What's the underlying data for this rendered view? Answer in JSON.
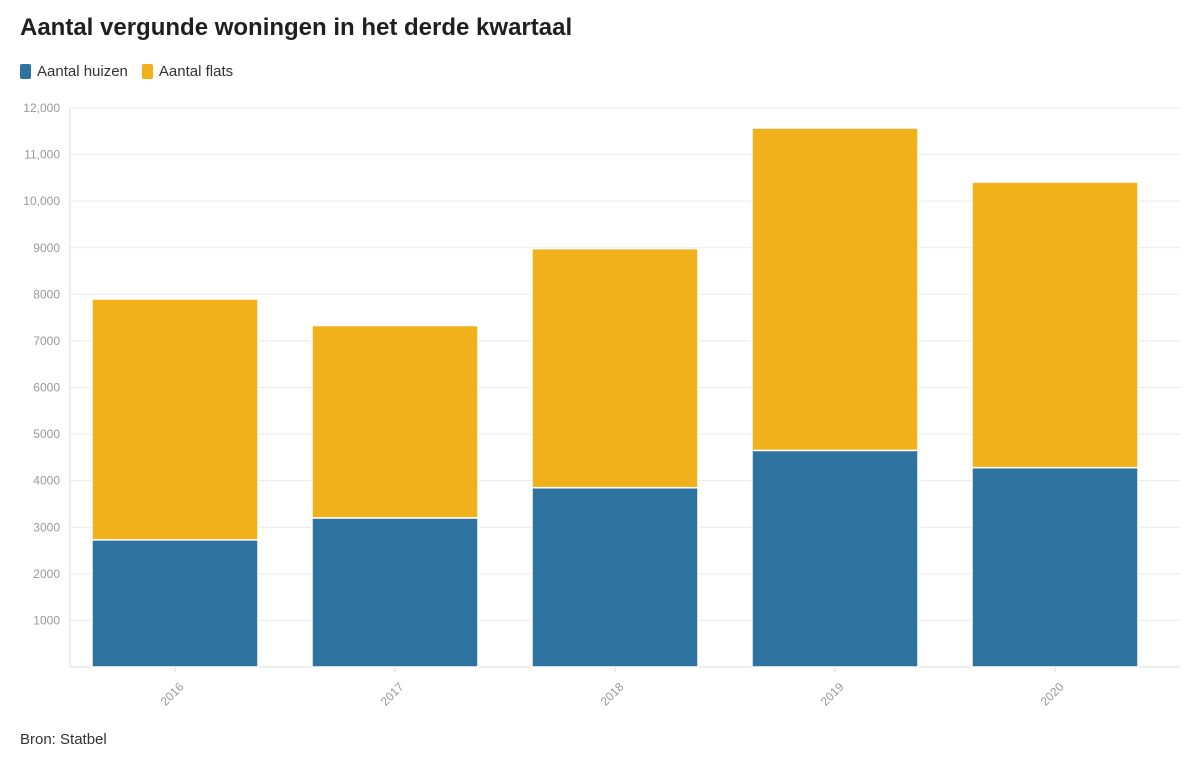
{
  "title": "Aantal vergunde woningen in het derde kwartaal",
  "source": "Bron: Statbel",
  "chart_data": {
    "type": "bar",
    "stacked": true,
    "categories": [
      "2016",
      "2017",
      "2018",
      "2019",
      "2020"
    ],
    "series": [
      {
        "name": "Aantal huizen",
        "color": "#2e73a0",
        "values": [
          2730,
          3200,
          3850,
          4650,
          4280
        ]
      },
      {
        "name": "Aantal flats",
        "color": "#f0b11b",
        "values": [
          5170,
          4130,
          5130,
          6920,
          6130
        ]
      }
    ],
    "y_ticks": [
      "1000",
      "2000",
      "3000",
      "4000",
      "5000",
      "6000",
      "7000",
      "8000",
      "9000",
      "10,000",
      "11,000",
      "12,000"
    ],
    "ylim": [
      0,
      12000
    ],
    "grid": true,
    "legend_position": "top-left"
  }
}
